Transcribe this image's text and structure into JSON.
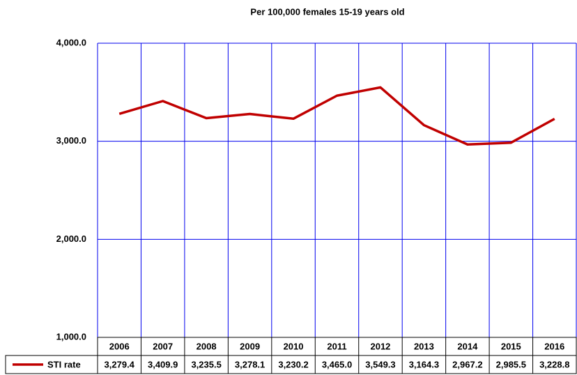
{
  "chart_data": {
    "type": "line",
    "title": "Per 100,000  females 15-19 years old",
    "categories": [
      "2006",
      "2007",
      "2008",
      "2009",
      "2010",
      "2011",
      "2012",
      "2013",
      "2014",
      "2015",
      "2016"
    ],
    "series": [
      {
        "name": "STI rate",
        "color": "#c00000",
        "values": [
          3279.4,
          3409.9,
          3235.5,
          3278.1,
          3230.2,
          3465.0,
          3549.3,
          3164.3,
          2967.2,
          2985.5,
          3228.8
        ],
        "value_labels": [
          "3,279.4",
          "3,409.9",
          "3,235.5",
          "3,278.1",
          "3,230.2",
          "3,465.0",
          "3,549.3",
          "3,164.3",
          "2,967.2",
          "2,985.5",
          "3,228.8"
        ]
      }
    ],
    "ylim": [
      1000,
      4000
    ],
    "yticks": [
      {
        "value": 1000,
        "label": "1,000.0"
      },
      {
        "value": 2000,
        "label": "2,000.0"
      },
      {
        "value": 3000,
        "label": "3,000.0"
      },
      {
        "value": 4000,
        "label": "4,000.0"
      }
    ],
    "grid": true
  }
}
